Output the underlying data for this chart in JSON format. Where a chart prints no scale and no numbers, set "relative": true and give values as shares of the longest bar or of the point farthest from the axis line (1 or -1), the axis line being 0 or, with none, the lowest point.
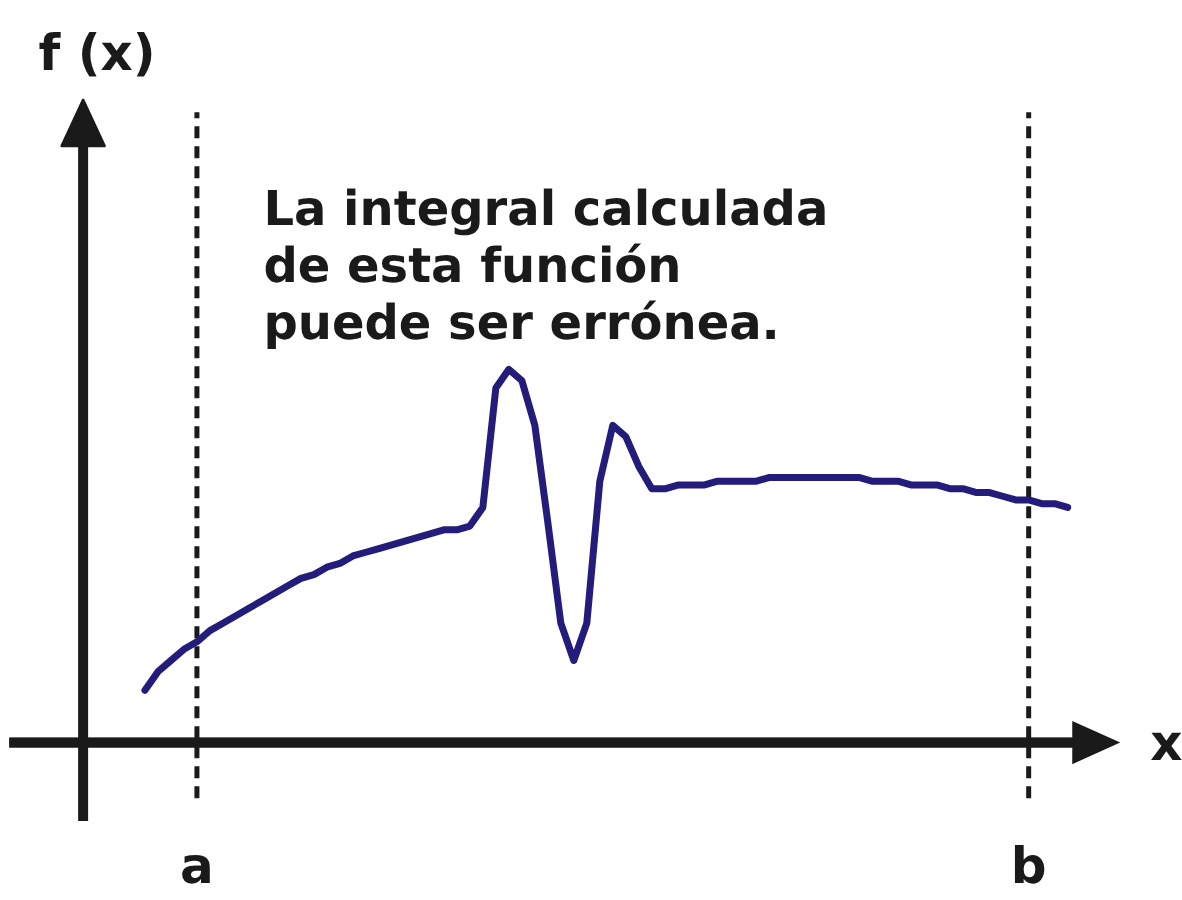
{
  "chart_data": {
    "type": "line",
    "xlabel": "x",
    "annotations": [
      "f (x)",
      "La integral calculada\nde esta función\npuede ser errónea."
    ],
    "relative": true,
    "categories": [
      null,
      null,
      null,
      null,
      "a",
      null,
      null,
      null,
      null,
      null,
      null,
      null,
      null,
      null,
      null,
      null,
      null,
      null,
      null,
      null,
      null,
      null,
      null,
      null,
      null,
      null,
      null,
      null,
      null,
      null,
      null,
      null,
      null,
      null,
      null,
      null,
      null,
      null,
      null,
      null,
      null,
      null,
      null,
      null,
      null,
      null,
      null,
      null,
      null,
      null,
      null,
      null,
      null,
      null,
      null,
      null,
      null,
      null,
      null,
      null,
      null,
      null,
      null,
      null,
      null,
      null,
      null,
      null,
      "b",
      null,
      null,
      null
    ],
    "series": [
      {
        "color": "#231c7a",
        "values": [
          0.14,
          0.19,
          0.22,
          0.25,
          0.27,
          0.3,
          0.32,
          0.34,
          0.36,
          0.38,
          0.4,
          0.42,
          0.44,
          0.45,
          0.47,
          0.48,
          0.5,
          0.51,
          0.52,
          0.53,
          0.54,
          0.55,
          0.56,
          0.57,
          0.57,
          0.58,
          0.63,
          0.95,
          1,
          0.97,
          0.85,
          0.59,
          0.32,
          0.22,
          0.32,
          0.7,
          0.85,
          0.82,
          0.74,
          0.68,
          0.68,
          0.69,
          0.69,
          0.69,
          0.7,
          0.7,
          0.7,
          0.7,
          0.71,
          0.71,
          0.71,
          0.71,
          0.71,
          0.71,
          0.71,
          0.71,
          0.7,
          0.7,
          0.7,
          0.69,
          0.69,
          0.69,
          0.68,
          0.68,
          0.67,
          0.67,
          0.66,
          0.65,
          0.65,
          0.64,
          0.64,
          0.63
        ]
      }
    ],
    "ref_lines": [
      {
        "axis": "x",
        "value": "a",
        "line_style": "dashed",
        "color": "#1a1a1a"
      },
      {
        "axis": "x",
        "value": "b",
        "line_style": "dashed",
        "color": "#1a1a1a"
      }
    ],
    "line_style": "solid"
  }
}
